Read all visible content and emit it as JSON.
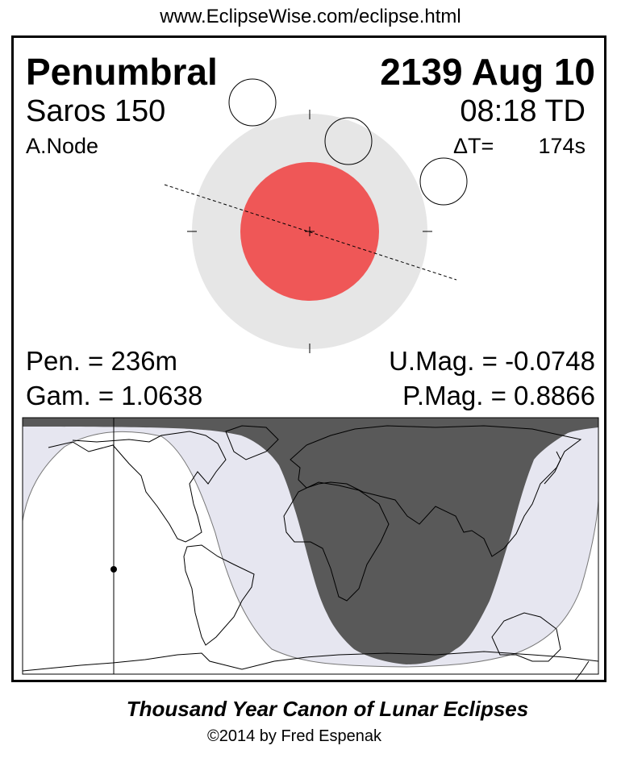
{
  "header": {
    "url": "www.EclipseWise.com/eclipse.html"
  },
  "eclipse": {
    "type": "Penumbral",
    "date": "2139 Aug 10",
    "saros": "Saros 150",
    "time": "08:18 TD",
    "node": "A.Node",
    "delta_t_label": "ΔT=",
    "delta_t_value": "174s",
    "pen_duration": "Pen. = 236m",
    "gamma": "Gam. = 1.0638",
    "umbral_mag": "U.Mag. = -0.0748",
    "penumbral_mag": "P.Mag. = 0.8866"
  },
  "colors": {
    "umbra": "#ef5757",
    "penumbra": "#e6e6e6",
    "night": "#595959",
    "penumbral_visibility": "#e6e6f0"
  },
  "footer": {
    "title": "Thousand Year Canon of Lunar Eclipses",
    "copyright": "©2014 by Fred Espenak"
  }
}
